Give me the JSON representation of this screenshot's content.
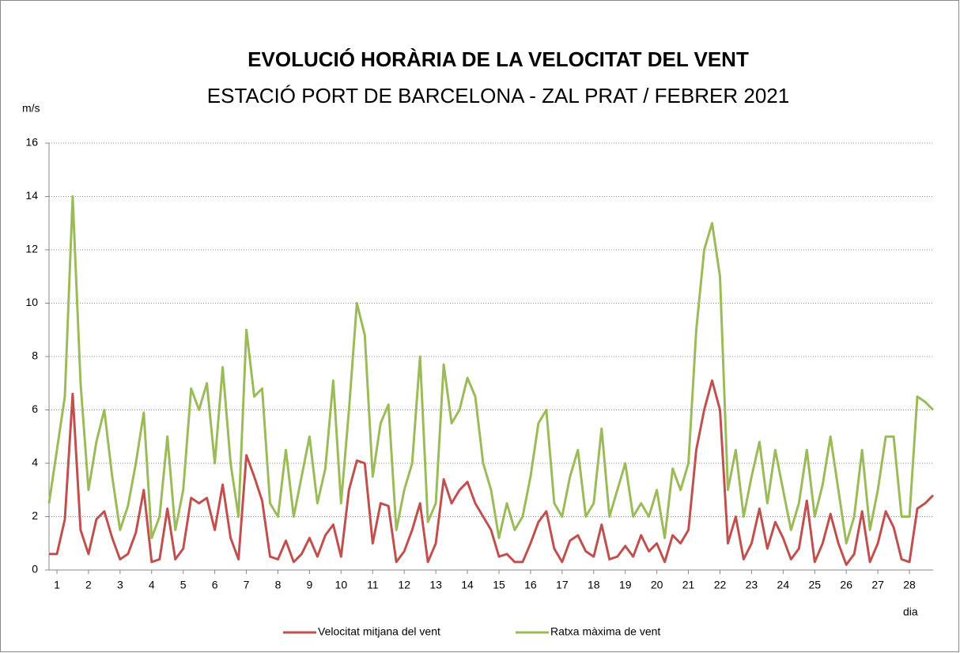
{
  "chart_data": {
    "type": "line",
    "title": "EVOLUCIÓ HORÀRIA DE LA VELOCITAT DEL VENT",
    "subtitle": "ESTACIÓ PORT DE BARCELONA - ZAL PRAT / FEBRER 2021",
    "y_label": "m/s",
    "x_label": "dia",
    "xlim": [
      0.75,
      28.75
    ],
    "xticks": [
      1,
      2,
      3,
      4,
      5,
      6,
      7,
      8,
      9,
      10,
      11,
      12,
      13,
      14,
      15,
      16,
      17,
      18,
      19,
      20,
      21,
      22,
      23,
      24,
      25,
      26,
      27,
      28
    ],
    "ylim": [
      0,
      16
    ],
    "yticks": [
      0,
      2,
      4,
      6,
      8,
      10,
      12,
      14,
      16
    ],
    "grid": true,
    "x": [
      0.75,
      1,
      1.25,
      1.5,
      1.75,
      2,
      2.25,
      2.5,
      2.75,
      3,
      3.25,
      3.5,
      3.75,
      4,
      4.25,
      4.5,
      4.75,
      5,
      5.25,
      5.5,
      5.75,
      6,
      6.25,
      6.5,
      6.75,
      7,
      7.25,
      7.5,
      7.75,
      8,
      8.25,
      8.5,
      8.75,
      9,
      9.25,
      9.5,
      9.75,
      10,
      10.25,
      10.5,
      10.75,
      11,
      11.25,
      11.5,
      11.75,
      12,
      12.25,
      12.5,
      12.75,
      13,
      13.25,
      13.5,
      13.75,
      14,
      14.25,
      14.5,
      14.75,
      15,
      15.25,
      15.5,
      15.75,
      16,
      16.25,
      16.5,
      16.75,
      17,
      17.25,
      17.5,
      17.75,
      18,
      18.25,
      18.5,
      18.75,
      19,
      19.25,
      19.5,
      19.75,
      20,
      20.25,
      20.5,
      20.75,
      21,
      21.25,
      21.5,
      21.75,
      22,
      22.25,
      22.5,
      22.75,
      23,
      23.25,
      23.5,
      23.75,
      24,
      24.25,
      24.5,
      24.75,
      25,
      25.25,
      25.5,
      25.75,
      26,
      26.25,
      26.5,
      26.75,
      27,
      27.25,
      27.5,
      27.75,
      28,
      28.25,
      28.5,
      28.75
    ],
    "series": [
      {
        "name": "Velocitat mitjana del vent",
        "color": "#c0504d",
        "values": [
          0.6,
          0.6,
          1.9,
          6.6,
          1.5,
          0.6,
          1.9,
          2.2,
          1.2,
          0.4,
          0.6,
          1.4,
          3,
          0.3,
          0.4,
          2.3,
          0.4,
          0.8,
          2.7,
          2.5,
          2.7,
          1.5,
          3.2,
          1.2,
          0.4,
          4.3,
          3.5,
          2.6,
          0.5,
          0.4,
          1.1,
          0.3,
          0.6,
          1.2,
          0.5,
          1.3,
          1.7,
          0.5,
          3,
          4.1,
          4,
          1,
          2.5,
          2.4,
          0.3,
          0.7,
          1.5,
          2.5,
          0.3,
          1,
          3.4,
          2.5,
          3,
          3.3,
          2.5,
          2,
          1.5,
          0.5,
          0.6,
          0.3,
          0.3,
          1,
          1.8,
          2.2,
          0.8,
          0.3,
          1.1,
          1.3,
          0.7,
          0.5,
          1.7,
          0.4,
          0.5,
          0.9,
          0.5,
          1.3,
          0.7,
          1,
          0.3,
          1.3,
          1,
          1.5,
          4.5,
          6,
          7.1,
          6,
          1,
          2,
          0.4,
          1,
          2.3,
          0.8,
          1.8,
          1.2,
          0.4,
          0.8,
          2.6,
          0.3,
          1,
          2.1,
          1,
          0.2,
          0.6,
          2.2,
          0.3,
          1,
          2.2,
          1.6,
          0.4,
          0.3,
          2.3,
          2.5,
          2.8
        ]
      },
      {
        "name": "Ratxa màxima de vent",
        "color": "#9bbb59",
        "values": [
          2.5,
          4.5,
          6.5,
          14,
          7,
          3,
          4.8,
          6,
          3.5,
          1.5,
          2.4,
          4,
          5.9,
          1.2,
          2,
          5,
          1.5,
          3,
          6.8,
          6,
          7,
          4,
          7.6,
          4,
          2,
          9,
          6.5,
          6.8,
          2.5,
          2,
          4.5,
          2,
          3.5,
          5,
          2.5,
          3.8,
          7.1,
          2.5,
          6,
          10,
          8.8,
          3.5,
          5.5,
          6.2,
          1.5,
          3,
          4,
          8,
          1.8,
          2.5,
          7.7,
          5.5,
          6,
          7.2,
          6.5,
          4,
          3,
          1.2,
          2.5,
          1.5,
          2,
          3.5,
          5.5,
          6,
          2.5,
          2,
          3.5,
          4.5,
          2,
          2.5,
          5.3,
          2,
          3,
          4,
          2,
          2.5,
          2,
          3,
          1.2,
          3.8,
          3,
          4,
          9,
          12,
          13,
          11,
          3,
          4.5,
          2,
          3.5,
          4.8,
          2.5,
          4.5,
          3,
          1.5,
          2.5,
          4.5,
          2,
          3.2,
          5,
          3,
          1,
          2,
          4.5,
          1.5,
          3,
          5,
          5,
          2,
          2,
          6.5,
          6.3,
          6
        ]
      }
    ]
  }
}
